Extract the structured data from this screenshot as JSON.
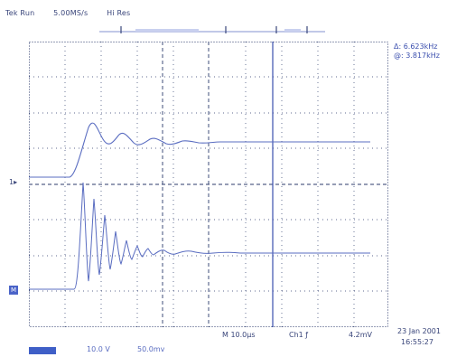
{
  "header": {
    "status": "Tek Run",
    "sample_rate": "5.00MS/s",
    "mode": "Hi Res"
  },
  "cursor_readout": {
    "delta": "Δ: 6.623kHz",
    "at": "@: 3.817kHz"
  },
  "ch1_marker": "1",
  "ch2_marker": "M",
  "timebase": "M 10.0µs",
  "trigger": "Ch1 ƒ",
  "trigger_level": "4.2mV",
  "date": "23 Jan 2001",
  "time": "16:55:27",
  "ch_scale_1": "10.0 V",
  "ch_scale_2": "50.0mv",
  "colors": {
    "trace": "#5a6dc1",
    "cursor": "#3b4fae",
    "grid": "#2b3a6b"
  },
  "icons": [
    "trigger-position-icon",
    "cursor-bar-icon"
  ]
}
